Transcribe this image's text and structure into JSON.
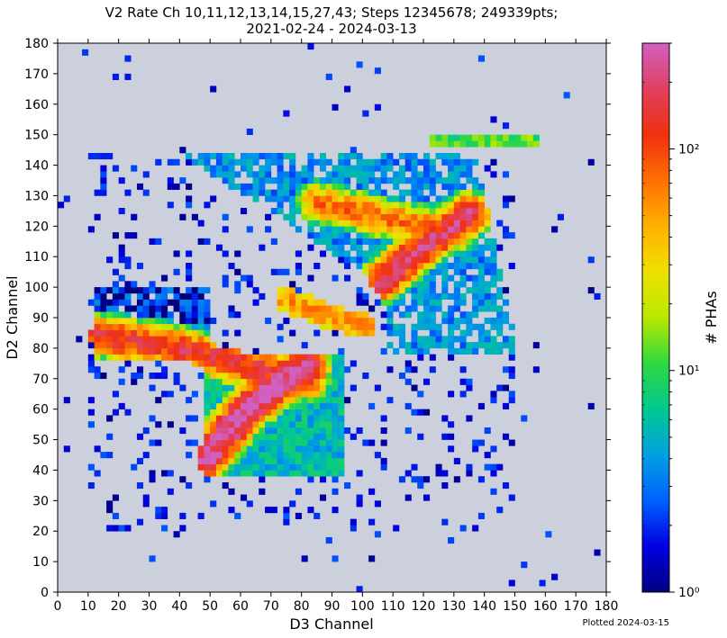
{
  "chart_data": {
    "type": "heatmap",
    "title_line1": "V2 Rate Ch 10,11,12,13,14,15,27,43; Steps 12345678; 249339pts;",
    "title_line2": "2021-02-24 - 2024-03-13",
    "xlabel": "D3 Channel",
    "ylabel": "D2 Channel",
    "xlim": [
      0,
      180
    ],
    "ylim": [
      0,
      180
    ],
    "bin_size": 2,
    "x_ticks": [
      0,
      10,
      20,
      30,
      40,
      50,
      60,
      70,
      80,
      90,
      100,
      110,
      120,
      130,
      140,
      150,
      160,
      170,
      180
    ],
    "y_ticks": [
      0,
      10,
      20,
      30,
      40,
      50,
      60,
      70,
      80,
      90,
      100,
      110,
      120,
      130,
      140,
      150,
      160,
      170,
      180
    ],
    "colorbar": {
      "label": "# PHAs",
      "scale": "log",
      "range": [
        1,
        300
      ],
      "major_ticks": [
        {
          "value": 1,
          "label": "10⁰"
        },
        {
          "value": 10,
          "label": "10¹"
        },
        {
          "value": 100,
          "label": "10²"
        }
      ],
      "colormap": [
        "#000080",
        "#0000e0",
        "#0060ff",
        "#00a0e0",
        "#00c890",
        "#30d840",
        "#b8e800",
        "#f0e000",
        "#ffb000",
        "#ff7000",
        "#f03010",
        "#e04060",
        "#d060c0"
      ]
    },
    "background_color": "#cccfdc",
    "regions": {
      "lower_filled_box": {
        "x": [
          49,
          94
        ],
        "y": [
          38,
          77
        ]
      },
      "left_band_box": {
        "x": [
          13,
          50
        ],
        "y": [
          77,
          100
        ]
      },
      "upper_wedge": {
        "top_y": 144,
        "top_x": [
          40,
          137
        ],
        "bottom_vertex": [
          106,
          101
        ],
        "right_edge_to": [
          151,
          78
        ]
      },
      "top_strip": {
        "x": [
          123,
          158
        ],
        "y": [
          147,
          149
        ]
      }
    },
    "ridges": [
      {
        "name": "lower_diagonal_band",
        "points": [
          [
            49,
            44
          ],
          [
            62,
            60
          ],
          [
            75,
            70
          ],
          [
            82,
            74
          ]
        ],
        "peak_counts": 300
      },
      {
        "name": "lower_horizontal_band",
        "points": [
          [
            14,
            84
          ],
          [
            40,
            80
          ],
          [
            70,
            72
          ],
          [
            82,
            70
          ]
        ],
        "peak_counts": 150
      },
      {
        "name": "upper_diagonal_band",
        "points": [
          [
            75,
            96
          ],
          [
            90,
            90
          ],
          [
            101,
            87
          ]
        ],
        "peak_counts": 60
      },
      {
        "name": "upper_wedge_ridge",
        "points": [
          [
            106,
            102
          ],
          [
            118,
            112
          ],
          [
            135,
            124
          ]
        ],
        "peak_counts": 200
      },
      {
        "name": "upper_wedge_ridge_2",
        "points": [
          [
            85,
            128
          ],
          [
            110,
            122
          ],
          [
            130,
            118
          ]
        ],
        "peak_counts": 80
      }
    ],
    "footer_note": "Plotted 2024-03-15"
  }
}
